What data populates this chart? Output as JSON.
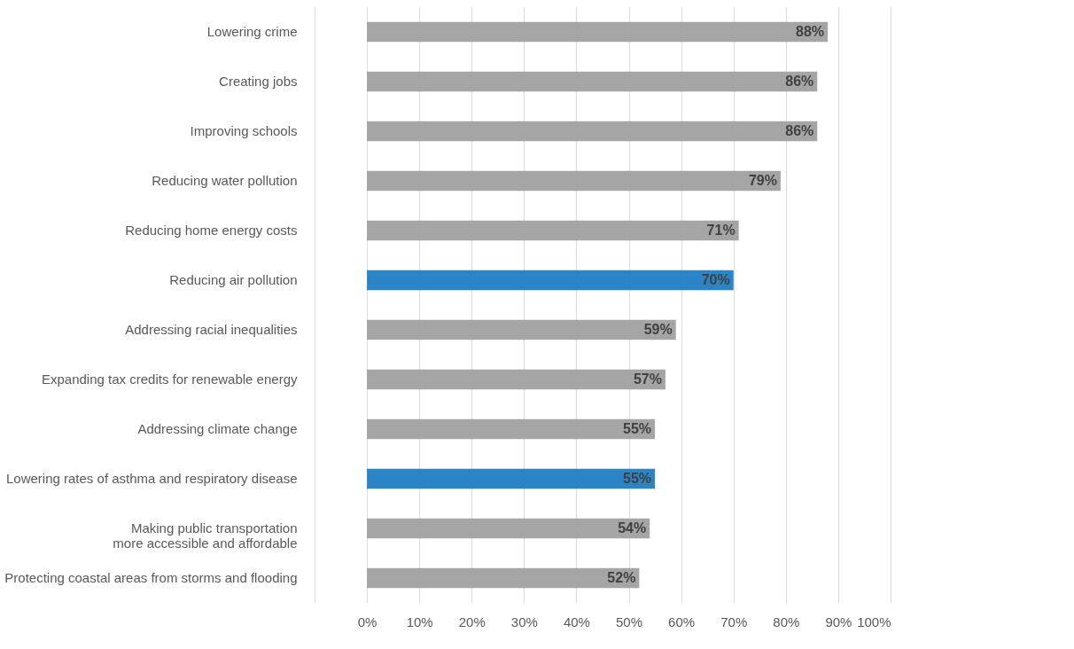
{
  "chart_data": {
    "type": "bar",
    "orientation": "horizontal",
    "categories": [
      "Lowering crime",
      "Creating jobs",
      "Improving schools",
      "Reducing water pollution",
      "Reducing home energy costs",
      "Reducing air pollution",
      "Addressing racial inequalities",
      "Expanding tax credits for renewable energy",
      "Addressing climate change",
      "Lowering rates of asthma and respiratory disease",
      "Making public transportation\nmore accessible and affordable",
      "Protecting coastal areas from storms and flooding"
    ],
    "values": [
      88,
      86,
      86,
      79,
      71,
      70,
      59,
      57,
      55,
      55,
      54,
      52
    ],
    "value_labels": [
      "88%",
      "86%",
      "86%",
      "79%",
      "71%",
      "70%",
      "59%",
      "57%",
      "55%",
      "55%",
      "54%",
      "52%"
    ],
    "colors": [
      "#a5a5a5",
      "#a5a5a5",
      "#a5a5a5",
      "#a5a5a5",
      "#a5a5a5",
      "#2a84c6",
      "#a5a5a5",
      "#a5a5a5",
      "#a5a5a5",
      "#2a84c6",
      "#a5a5a5",
      "#a5a5a5"
    ],
    "xlim": [
      -10,
      100
    ],
    "xticks": [
      {
        "value": -10,
        "label": null
      },
      {
        "value": 0,
        "label": "0%"
      },
      {
        "value": 10,
        "label": "10%"
      },
      {
        "value": 20,
        "label": "20%"
      },
      {
        "value": 30,
        "label": "30%"
      },
      {
        "value": 40,
        "label": "40%"
      },
      {
        "value": 50,
        "label": "50%"
      },
      {
        "value": 60,
        "label": "60%"
      },
      {
        "value": 70,
        "label": "70%"
      },
      {
        "value": 80,
        "label": "80%"
      },
      {
        "value": 90,
        "label": "90%"
      },
      {
        "value": 100,
        "label": "100%"
      }
    ],
    "grid": "x"
  }
}
